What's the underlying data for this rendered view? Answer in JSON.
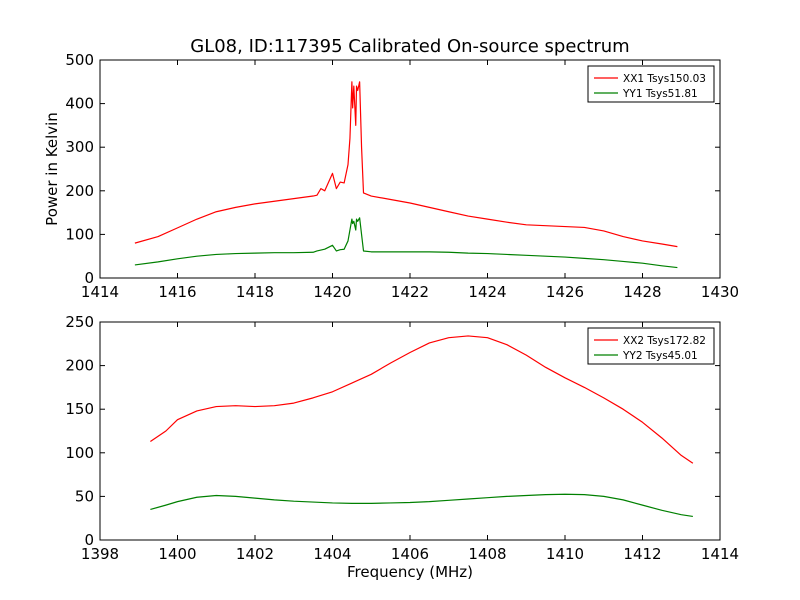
{
  "chart_data": [
    {
      "type": "line",
      "title": "GL08, ID:117395 Calibrated On-source spectrum",
      "xlabel": "",
      "ylabel": "Power in Kelvin",
      "xlim": [
        1414,
        1430
      ],
      "ylim": [
        0,
        500
      ],
      "xticks": [
        1414,
        1416,
        1418,
        1420,
        1422,
        1424,
        1426,
        1428,
        1430
      ],
      "yticks": [
        0,
        100,
        200,
        300,
        400,
        500
      ],
      "legend_position": "top-right",
      "series": [
        {
          "name": "XX1 Tsys150.03",
          "color": "#ff0000",
          "x": [
            1414.9,
            1415.5,
            1416.0,
            1416.5,
            1417.0,
            1417.5,
            1418.0,
            1418.5,
            1419.0,
            1419.5,
            1419.6,
            1419.7,
            1419.8,
            1420.0,
            1420.1,
            1420.2,
            1420.3,
            1420.4,
            1420.45,
            1420.5,
            1420.52,
            1420.55,
            1420.6,
            1420.62,
            1420.65,
            1420.7,
            1420.75,
            1420.8,
            1421.0,
            1421.5,
            1422.0,
            1422.5,
            1423.0,
            1423.5,
            1424.0,
            1424.5,
            1425.0,
            1425.5,
            1426.0,
            1426.5,
            1427.0,
            1427.5,
            1428.0,
            1428.5,
            1428.9
          ],
          "y": [
            80,
            95,
            115,
            135,
            152,
            162,
            170,
            176,
            182,
            188,
            190,
            205,
            200,
            240,
            205,
            220,
            218,
            260,
            320,
            450,
            390,
            440,
            350,
            440,
            430,
            450,
            300,
            195,
            188,
            180,
            172,
            162,
            152,
            142,
            135,
            128,
            122,
            120,
            118,
            116,
            108,
            95,
            85,
            78,
            72
          ]
        },
        {
          "name": "YY1 Tsys51.81",
          "color": "#008000",
          "x": [
            1414.9,
            1415.5,
            1416.0,
            1416.5,
            1417.0,
            1417.5,
            1418.0,
            1418.5,
            1419.0,
            1419.5,
            1419.6,
            1419.8,
            1420.0,
            1420.1,
            1420.2,
            1420.3,
            1420.4,
            1420.45,
            1420.5,
            1420.52,
            1420.55,
            1420.6,
            1420.62,
            1420.65,
            1420.7,
            1420.75,
            1420.8,
            1421.0,
            1421.5,
            1422.0,
            1422.5,
            1423.0,
            1423.5,
            1424.0,
            1424.5,
            1425.0,
            1425.5,
            1426.0,
            1426.5,
            1427.0,
            1427.5,
            1428.0,
            1428.5,
            1428.9
          ],
          "y": [
            30,
            37,
            44,
            50,
            54,
            56,
            57,
            58,
            58,
            59,
            62,
            66,
            75,
            62,
            65,
            66,
            85,
            110,
            135,
            125,
            130,
            110,
            135,
            130,
            138,
            100,
            62,
            60,
            60,
            60,
            60,
            59,
            57,
            56,
            54,
            52,
            50,
            48,
            45,
            42,
            38,
            34,
            28,
            24
          ]
        }
      ]
    },
    {
      "type": "line",
      "title": "",
      "xlabel": "Frequency (MHz)",
      "ylabel": "",
      "xlim": [
        1398,
        1414
      ],
      "ylim": [
        0,
        250
      ],
      "xticks": [
        1398,
        1400,
        1402,
        1404,
        1406,
        1408,
        1410,
        1412,
        1414
      ],
      "yticks": [
        0,
        50,
        100,
        150,
        200,
        250
      ],
      "legend_position": "top-right",
      "series": [
        {
          "name": "XX2 Tsys172.82",
          "color": "#ff0000",
          "x": [
            1399.3,
            1399.7,
            1400.0,
            1400.5,
            1401.0,
            1401.5,
            1402.0,
            1402.5,
            1403.0,
            1403.5,
            1404.0,
            1404.5,
            1405.0,
            1405.5,
            1406.0,
            1406.5,
            1407.0,
            1407.5,
            1408.0,
            1408.5,
            1409.0,
            1409.5,
            1410.0,
            1410.5,
            1411.0,
            1411.5,
            1412.0,
            1412.5,
            1413.0,
            1413.3
          ],
          "y": [
            113,
            125,
            138,
            148,
            153,
            154,
            153,
            154,
            157,
            163,
            170,
            180,
            190,
            203,
            215,
            226,
            232,
            234,
            232,
            224,
            212,
            198,
            186,
            175,
            163,
            150,
            135,
            117,
            97,
            88
          ]
        },
        {
          "name": "YY2 Tsys45.01",
          "color": "#008000",
          "x": [
            1399.3,
            1399.7,
            1400.0,
            1400.5,
            1401.0,
            1401.5,
            1402.0,
            1402.5,
            1403.0,
            1403.5,
            1404.0,
            1404.5,
            1405.0,
            1405.5,
            1406.0,
            1406.5,
            1407.0,
            1407.5,
            1408.0,
            1408.5,
            1409.0,
            1409.5,
            1410.0,
            1410.5,
            1411.0,
            1411.5,
            1412.0,
            1412.5,
            1413.0,
            1413.3
          ],
          "y": [
            35,
            40,
            44,
            49,
            51,
            50,
            48,
            46,
            44.5,
            43.5,
            42.5,
            42,
            42,
            42.5,
            43,
            44,
            45.5,
            47,
            48.5,
            50,
            51,
            52,
            52.5,
            52,
            50,
            46,
            40,
            34,
            29,
            27
          ]
        }
      ]
    }
  ]
}
